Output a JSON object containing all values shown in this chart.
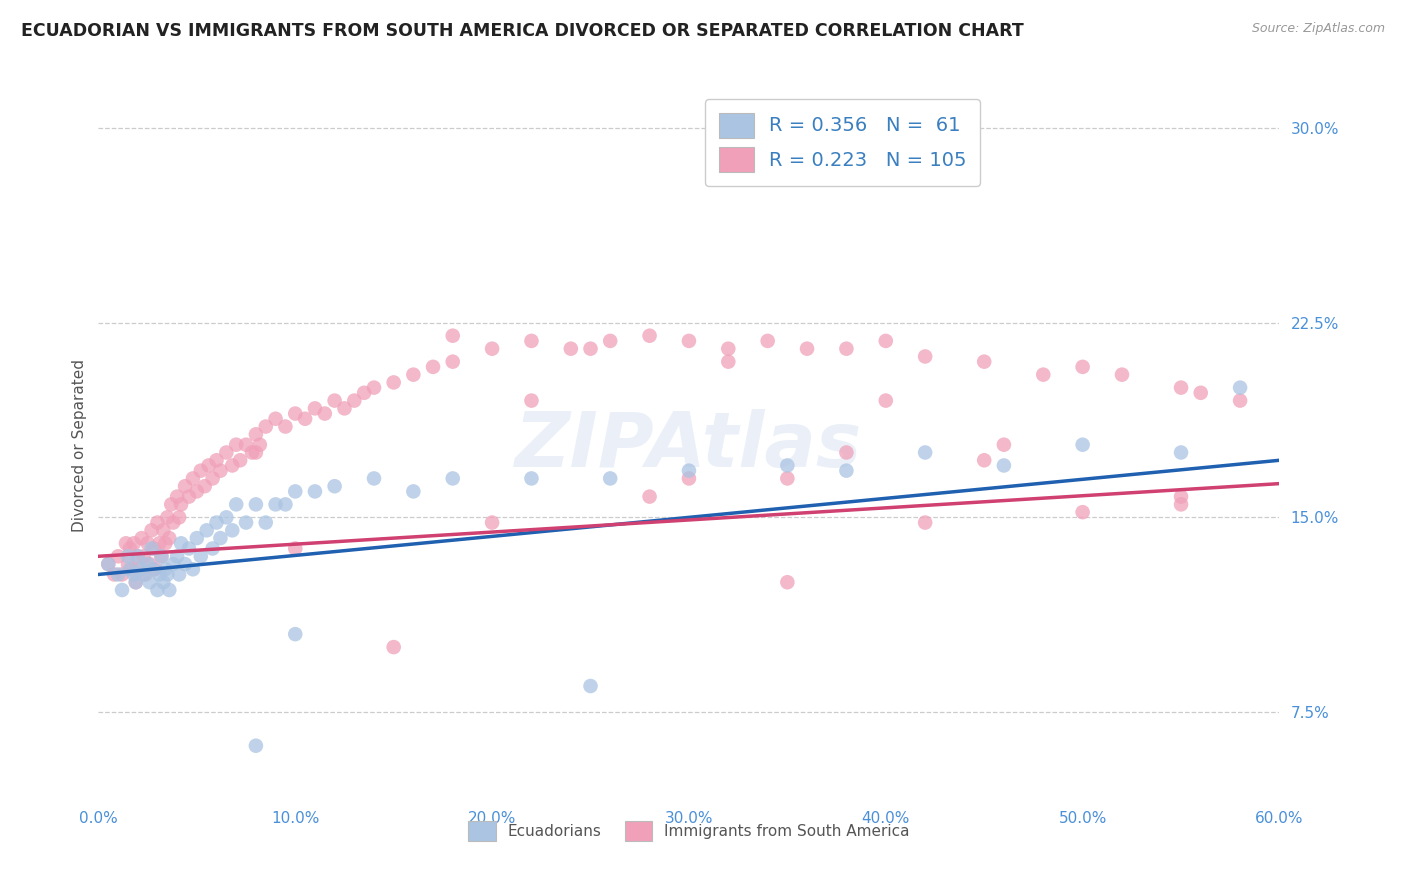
{
  "title": "ECUADORIAN VS IMMIGRANTS FROM SOUTH AMERICA DIVORCED OR SEPARATED CORRELATION CHART",
  "source_text": "Source: ZipAtlas.com",
  "ylabel": "Divorced or Separated",
  "legend_label_1": "Ecuadorians",
  "legend_label_2": "Immigrants from South America",
  "R1": 0.356,
  "N1": 61,
  "R2": 0.223,
  "N2": 105,
  "color1": "#aac4e2",
  "color1_line": "#2060b0",
  "color2": "#f0a0b8",
  "color2_line": "#d04070",
  "xlim": [
    0.0,
    0.6
  ],
  "ylim": [
    0.04,
    0.315
  ],
  "yticks": [
    0.075,
    0.15,
    0.225,
    0.3
  ],
  "ytick_labels": [
    "7.5%",
    "15.0%",
    "22.5%",
    "30.0%"
  ],
  "xticks": [
    0.0,
    0.1,
    0.2,
    0.3,
    0.4,
    0.5,
    0.6
  ],
  "xtick_labels": [
    "0.0%",
    "10.0%",
    "20.0%",
    "30.0%",
    "40.0%",
    "50.0%",
    "60.0%"
  ],
  "watermark": "ZIPAtlas",
  "title_color": "#222222",
  "axis_color": "#4a90d9",
  "line1_x0": 0.0,
  "line1_y0": 0.128,
  "line1_x1": 0.6,
  "line1_y1": 0.172,
  "line2_x0": 0.0,
  "line2_y0": 0.135,
  "line2_x1": 0.6,
  "line2_y1": 0.163,
  "scatter1_x": [
    0.005,
    0.01,
    0.012,
    0.015,
    0.016,
    0.018,
    0.019,
    0.02,
    0.022,
    0.023,
    0.025,
    0.026,
    0.027,
    0.028,
    0.03,
    0.031,
    0.032,
    0.033,
    0.034,
    0.035,
    0.036,
    0.038,
    0.04,
    0.041,
    0.042,
    0.044,
    0.046,
    0.048,
    0.05,
    0.052,
    0.055,
    0.058,
    0.06,
    0.062,
    0.065,
    0.068,
    0.07,
    0.075,
    0.08,
    0.085,
    0.09,
    0.095,
    0.1,
    0.11,
    0.12,
    0.14,
    0.16,
    0.18,
    0.22,
    0.26,
    0.3,
    0.35,
    0.38,
    0.42,
    0.46,
    0.5,
    0.55,
    0.58,
    0.25,
    0.1,
    0.08
  ],
  "scatter1_y": [
    0.132,
    0.128,
    0.122,
    0.135,
    0.13,
    0.128,
    0.125,
    0.135,
    0.13,
    0.128,
    0.132,
    0.125,
    0.138,
    0.13,
    0.122,
    0.128,
    0.135,
    0.125,
    0.13,
    0.128,
    0.122,
    0.132,
    0.135,
    0.128,
    0.14,
    0.132,
    0.138,
    0.13,
    0.142,
    0.135,
    0.145,
    0.138,
    0.148,
    0.142,
    0.15,
    0.145,
    0.155,
    0.148,
    0.155,
    0.148,
    0.155,
    0.155,
    0.16,
    0.16,
    0.162,
    0.165,
    0.16,
    0.165,
    0.165,
    0.165,
    0.168,
    0.17,
    0.168,
    0.175,
    0.17,
    0.178,
    0.175,
    0.2,
    0.085,
    0.105,
    0.062
  ],
  "scatter2_x": [
    0.005,
    0.008,
    0.01,
    0.012,
    0.014,
    0.015,
    0.016,
    0.017,
    0.018,
    0.019,
    0.02,
    0.021,
    0.022,
    0.023,
    0.024,
    0.025,
    0.026,
    0.027,
    0.028,
    0.029,
    0.03,
    0.031,
    0.032,
    0.033,
    0.034,
    0.035,
    0.036,
    0.037,
    0.038,
    0.04,
    0.041,
    0.042,
    0.044,
    0.046,
    0.048,
    0.05,
    0.052,
    0.054,
    0.056,
    0.058,
    0.06,
    0.062,
    0.065,
    0.068,
    0.07,
    0.072,
    0.075,
    0.078,
    0.08,
    0.082,
    0.085,
    0.09,
    0.095,
    0.1,
    0.105,
    0.11,
    0.115,
    0.12,
    0.125,
    0.13,
    0.135,
    0.14,
    0.15,
    0.16,
    0.17,
    0.18,
    0.2,
    0.22,
    0.24,
    0.26,
    0.28,
    0.3,
    0.32,
    0.34,
    0.36,
    0.38,
    0.4,
    0.42,
    0.45,
    0.48,
    0.5,
    0.52,
    0.55,
    0.56,
    0.58,
    0.15,
    0.22,
    0.08,
    0.35,
    0.42,
    0.5,
    0.55,
    0.3,
    0.18,
    0.25,
    0.32,
    0.4,
    0.1,
    0.28,
    0.35,
    0.45,
    0.55,
    0.2,
    0.38,
    0.46
  ],
  "scatter2_y": [
    0.132,
    0.128,
    0.135,
    0.128,
    0.14,
    0.132,
    0.138,
    0.13,
    0.14,
    0.125,
    0.135,
    0.13,
    0.142,
    0.135,
    0.128,
    0.14,
    0.132,
    0.145,
    0.138,
    0.13,
    0.148,
    0.14,
    0.135,
    0.145,
    0.14,
    0.15,
    0.142,
    0.155,
    0.148,
    0.158,
    0.15,
    0.155,
    0.162,
    0.158,
    0.165,
    0.16,
    0.168,
    0.162,
    0.17,
    0.165,
    0.172,
    0.168,
    0.175,
    0.17,
    0.178,
    0.172,
    0.178,
    0.175,
    0.182,
    0.178,
    0.185,
    0.188,
    0.185,
    0.19,
    0.188,
    0.192,
    0.19,
    0.195,
    0.192,
    0.195,
    0.198,
    0.2,
    0.202,
    0.205,
    0.208,
    0.21,
    0.215,
    0.218,
    0.215,
    0.218,
    0.22,
    0.218,
    0.215,
    0.218,
    0.215,
    0.215,
    0.218,
    0.212,
    0.21,
    0.205,
    0.208,
    0.205,
    0.2,
    0.198,
    0.195,
    0.1,
    0.195,
    0.175,
    0.125,
    0.148,
    0.152,
    0.155,
    0.165,
    0.22,
    0.215,
    0.21,
    0.195,
    0.138,
    0.158,
    0.165,
    0.172,
    0.158,
    0.148,
    0.175,
    0.178
  ]
}
